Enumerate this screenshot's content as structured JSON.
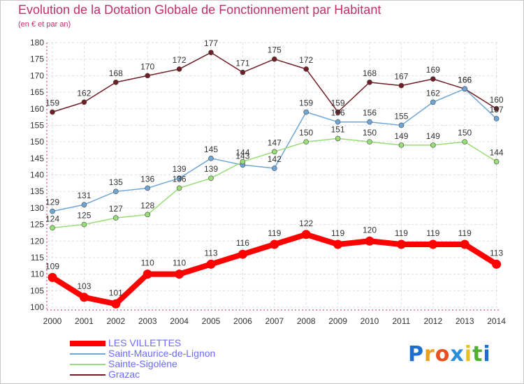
{
  "chart_data": {
    "type": "line",
    "title": "Evolution de la Dotation Globale de Fonctionnement par Habitant",
    "subtitle": "(en € et par an)",
    "xlabel": "",
    "ylabel": "",
    "ylim": [
      100,
      180
    ],
    "yticks": [
      100,
      105,
      110,
      115,
      120,
      125,
      130,
      135,
      140,
      145,
      150,
      155,
      160,
      165,
      170,
      175,
      180
    ],
    "categories": [
      "2000",
      "2001",
      "2002",
      "2003",
      "2004",
      "2005",
      "2006",
      "2007",
      "2008",
      "2009",
      "2010",
      "2011",
      "2012",
      "2013",
      "2014"
    ],
    "grid": true,
    "series": [
      {
        "name": "Grazac",
        "color": "#6e1e24",
        "values": [
          159,
          162,
          168,
          170,
          172,
          177,
          171,
          175,
          172,
          159,
          168,
          167,
          169,
          166,
          160
        ]
      },
      {
        "name": "Saint-Maurice-de-Lignon",
        "color": "#6fa6d6",
        "values": [
          129,
          131,
          135,
          136,
          139,
          145,
          143,
          142,
          159,
          156,
          156,
          155,
          162,
          166,
          157
        ]
      },
      {
        "name": "Sainte-Sigolène",
        "color": "#99dd77",
        "values": [
          124,
          125,
          127,
          128,
          136,
          139,
          144,
          147,
          150,
          151,
          150,
          149,
          149,
          150,
          144
        ]
      },
      {
        "name": "LES VILLETTES",
        "color": "#ff0000",
        "values": [
          109,
          103,
          101,
          110,
          110,
          113,
          116,
          119,
          122,
          119,
          120,
          119,
          119,
          119,
          113
        ]
      }
    ],
    "legend": [
      {
        "name": "LES VILLETTES",
        "color": "#ff0000"
      },
      {
        "name": "Saint-Maurice-de-Lignon",
        "color": "#6fa6d6"
      },
      {
        "name": "Sainte-Sigolène",
        "color": "#99dd77"
      },
      {
        "name": "Grazac",
        "color": "#6e1e24"
      }
    ]
  },
  "logo": {
    "letters": [
      "P",
      "r",
      "o",
      "x",
      "i",
      "t",
      "i"
    ],
    "colors": [
      "#1a6fd0",
      "#e8a020",
      "#e85020",
      "#2c8ed8",
      "#e8c020",
      "#50b030",
      "#1a6fd0"
    ]
  }
}
